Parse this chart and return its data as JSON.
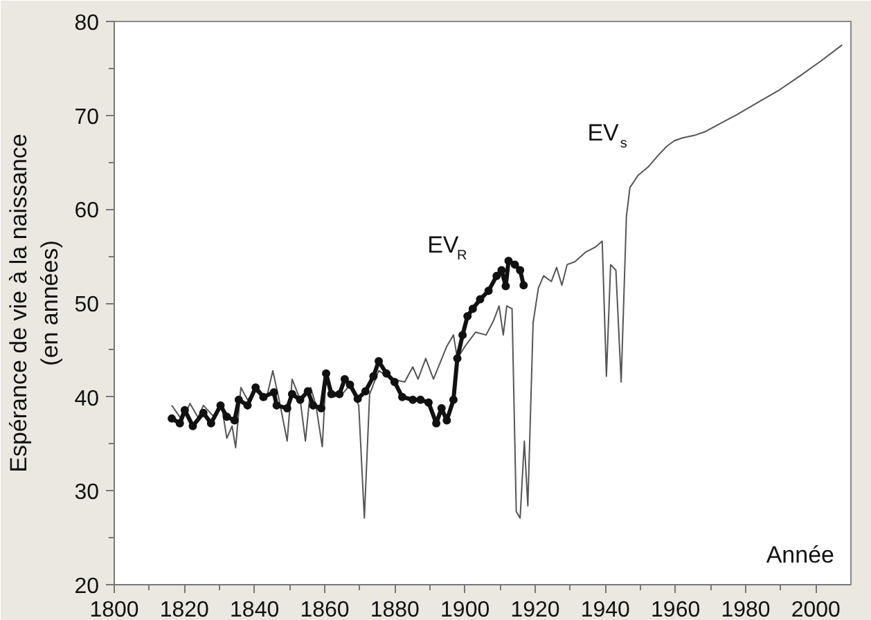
{
  "chart_data": {
    "type": "line",
    "ylabel": "Espérance de vie à la naissance\n(en années)",
    "xlabel": "Année",
    "xlim": [
      1800,
      2010
    ],
    "ylim": [
      20,
      80
    ],
    "xticks": [
      1800,
      {
        "value": 1810,
        "label": null
      },
      1820,
      {
        "value": 1830,
        "label": null
      },
      1840,
      {
        "value": 1850,
        "label": null
      },
      1860,
      {
        "value": 1870,
        "label": null
      },
      1880,
      {
        "value": 1890,
        "label": null
      },
      1900,
      {
        "value": 1910,
        "label": null
      },
      1920,
      {
        "value": 1930,
        "label": null
      },
      1940,
      {
        "value": 1950,
        "label": null
      },
      1960,
      {
        "value": 1970,
        "label": null
      },
      1980,
      {
        "value": 1990,
        "label": null
      },
      2000
    ],
    "yticks": [
      20,
      {
        "value": 25,
        "label": null
      },
      30,
      {
        "value": 35,
        "label": null
      },
      40,
      {
        "value": 45,
        "label": null
      },
      50,
      {
        "value": 55,
        "label": null
      },
      60,
      {
        "value": 65,
        "label": null
      },
      70,
      {
        "value": 75,
        "label": null
      },
      80
    ],
    "grid": false,
    "series": [
      {
        "name": "EV$_{s}$",
        "color": "#555555",
        "marker": "none",
        "x": [
          1816.4,
          1819.4,
          1821.6,
          1823.9,
          1825.4,
          1828.4,
          1830.6,
          1832.1,
          1833.6,
          1834.6,
          1836.1,
          1838,
          1840.3,
          1843.3,
          1845.2,
          1847,
          1849.3,
          1850.7,
          1853,
          1854.5,
          1856,
          1857.5,
          1859.3,
          1860.4,
          1862.7,
          1865,
          1867.2,
          1869.7,
          1871.3,
          1872.8,
          1875.4,
          1879.1,
          1882.8,
          1885.1,
          1886.6,
          1888.8,
          1891,
          1894.8,
          1896.7,
          1897.8,
          1900,
          1903,
          1906,
          1908.2,
          1909.7,
          1910.9,
          1911.9,
          1913.4,
          1914.6,
          1915.7,
          1916.9,
          1917.9,
          1919.4,
          1920.9,
          1922.4,
          1924.6,
          1926.1,
          1927.6,
          1929.1,
          1931.3,
          1934.3,
          1937.3,
          1939.1,
          1940.3,
          1941.5,
          1943,
          1944.5,
          1946,
          1947,
          1949.3,
          1952.2,
          1955.2,
          1957.5,
          1959.7,
          1962,
          1965.7,
          1968.7,
          1971.6,
          1977.6,
          1983.6,
          1989.6,
          1995.5,
          2001.5,
          2007.5
        ],
        "values": [
          39.1,
          37.5,
          39.3,
          37.8,
          39.1,
          37.9,
          39.1,
          35.6,
          36.9,
          34.6,
          41,
          39.7,
          40.6,
          39.7,
          42.8,
          39.7,
          35.3,
          41.9,
          39.7,
          35.3,
          41,
          39.1,
          34.7,
          42.5,
          40,
          40.3,
          41.3,
          39.1,
          27.1,
          40.3,
          42.8,
          41.9,
          41.6,
          43.2,
          41.9,
          44.1,
          41.9,
          45.4,
          46.6,
          44.1,
          45.4,
          46.9,
          46.6,
          48.2,
          49.7,
          46.6,
          49.7,
          49.4,
          27.8,
          27.1,
          35.3,
          28.4,
          47.9,
          51.6,
          52.9,
          52.3,
          53.8,
          51.9,
          54.1,
          54.4,
          55.4,
          56,
          56.6,
          42.2,
          54.1,
          53.5,
          41.6,
          59.2,
          62.3,
          63.6,
          64.5,
          65.8,
          66.7,
          67.3,
          67.6,
          67.9,
          68.3,
          68.9,
          70.1,
          71.4,
          72.7,
          74.2,
          75.8,
          77.5
        ]
      },
      {
        "name": "EV$_{R}$",
        "color": "#111111",
        "marker": "circle",
        "x": [
          1816.4,
          1818.7,
          1820.1,
          1822.4,
          1825.4,
          1827.6,
          1830.3,
          1832.1,
          1834.3,
          1835.5,
          1838,
          1840.3,
          1842.5,
          1845.5,
          1846.3,
          1849.3,
          1850.7,
          1853,
          1855.2,
          1856.7,
          1859,
          1860.4,
          1861.9,
          1864.2,
          1865.7,
          1867.2,
          1869.4,
          1871.6,
          1873.9,
          1875.4,
          1877.6,
          1879.9,
          1882.1,
          1885.1,
          1887.3,
          1889.6,
          1891.8,
          1893.3,
          1894.8,
          1896.7,
          1897.8,
          1899.3,
          1900.7,
          1902.2,
          1904.3,
          1906.7,
          1909,
          1910.4,
          1911.6,
          1912.4,
          1914.2,
          1915.7,
          1916.7
        ],
        "values": [
          37.7,
          37.2,
          38.6,
          36.9,
          38.3,
          37.2,
          39.1,
          37.9,
          37.5,
          39.7,
          39.1,
          41,
          40,
          40.5,
          39.1,
          38.8,
          40.3,
          39.7,
          40.6,
          39.1,
          38.8,
          42.5,
          40.3,
          40.3,
          41.9,
          41.3,
          39.8,
          40.6,
          42.2,
          43.8,
          42.5,
          41.6,
          40,
          39.7,
          39.7,
          39.4,
          37.2,
          38.8,
          37.5,
          39.7,
          44.1,
          46.6,
          48.6,
          49.4,
          50.4,
          51.3,
          52.9,
          53.5,
          51.8,
          54.5,
          54.1,
          53.5,
          51.9
        ]
      }
    ]
  }
}
